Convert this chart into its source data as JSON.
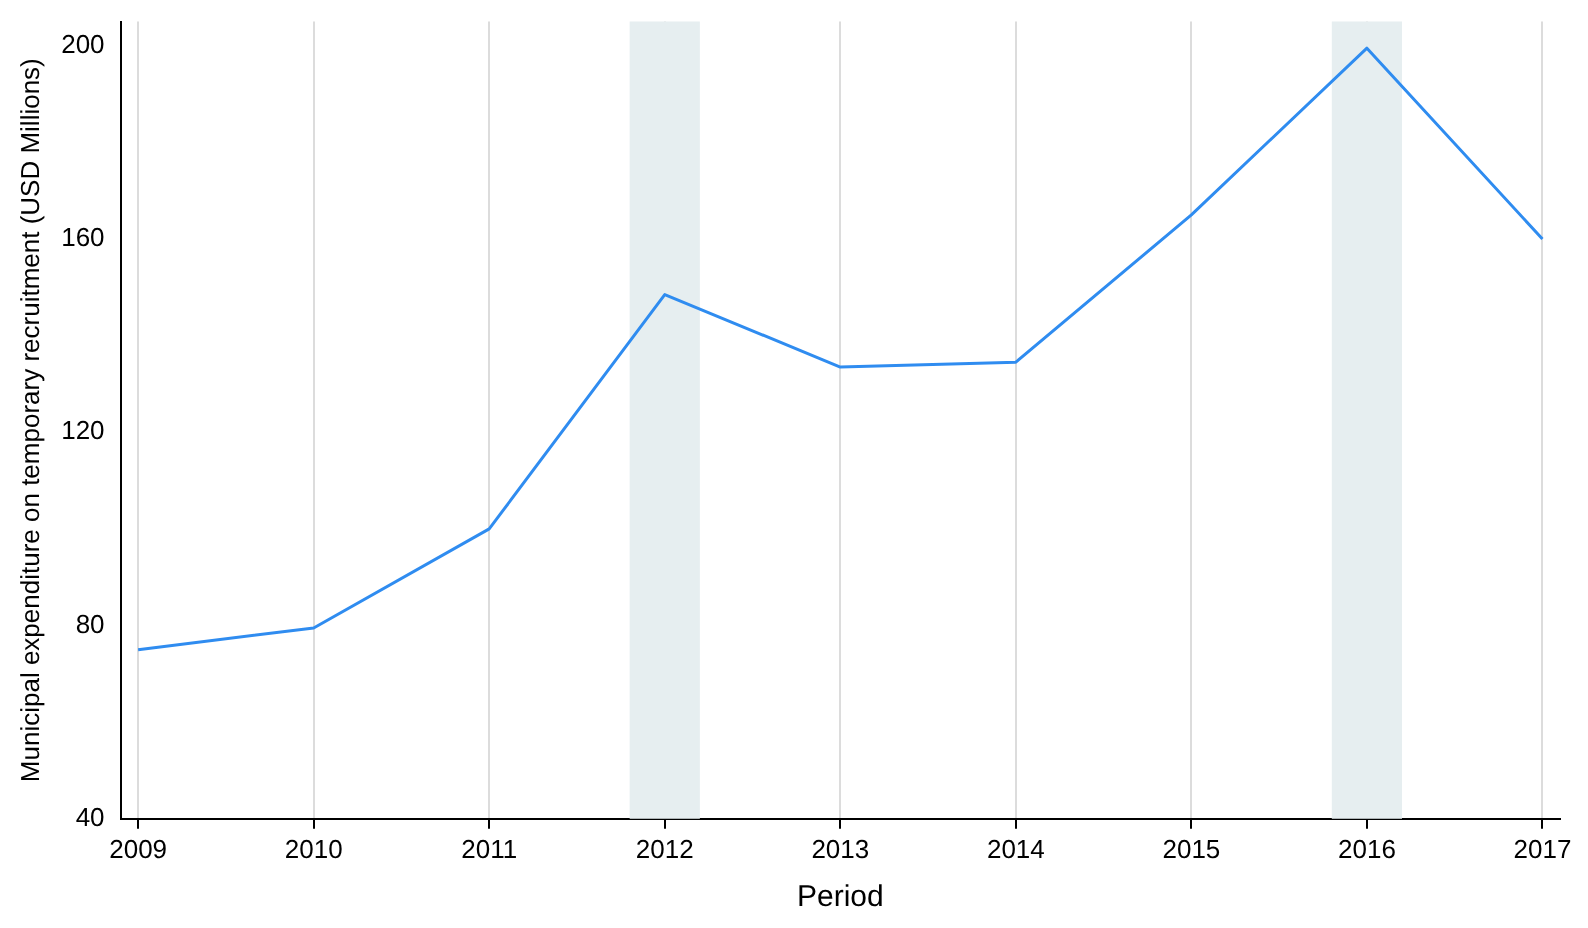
{
  "chart_data": {
    "type": "line",
    "xlabel": "Period",
    "ylabel": "Municipal expenditure on temporary recruitment (USD Millions)",
    "x": [
      2009,
      2010,
      2011,
      2012,
      2013,
      2014,
      2015,
      2016,
      2017
    ],
    "series": [
      {
        "color": "#2f8cf0",
        "values": [
          75,
          79.5,
          100,
          148.5,
          133.5,
          134.5,
          165,
          199.5,
          160
        ]
      }
    ],
    "xlim": [
      2008.9,
      2017.1
    ],
    "xticks": [
      2009,
      2010,
      2011,
      2012,
      2013,
      2014,
      2015,
      2016,
      2017
    ],
    "ylim": [
      40,
      205
    ],
    "yticks": [
      40,
      80,
      120,
      160,
      200
    ],
    "bands": [
      {
        "axis": "x",
        "from": 2011.8,
        "to": 2012.2,
        "color": "#e6eef0"
      },
      {
        "axis": "x",
        "from": 2015.8,
        "to": 2016.2,
        "color": "#e6eef0"
      }
    ],
    "grid": "x",
    "legend": false,
    "marker": "none",
    "line_style": "solid"
  }
}
